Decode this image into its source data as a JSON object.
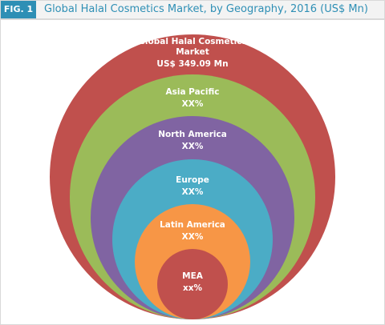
{
  "header": {
    "fig": "FIG. 1",
    "title": "Global Halal Cosmetics Market, by Geography, 2016 (US$ Mn)"
  },
  "nodes": [
    {
      "label": "Global Halal Cosmetics Market",
      "value": "US$ 349.09 Mn",
      "color": "#c0504d"
    },
    {
      "label": "Asia Pacific",
      "value": "XX%",
      "color": "#9bbb59"
    },
    {
      "label": "North America",
      "value": "XX%",
      "color": "#8064a2"
    },
    {
      "label": "Europe",
      "value": "XX%",
      "color": "#4bacc6"
    },
    {
      "label": "Latin America",
      "value": "XX%",
      "color": "#f79646"
    },
    {
      "label": "MEA",
      "value": "xx%",
      "color": "#c0504d"
    }
  ]
}
